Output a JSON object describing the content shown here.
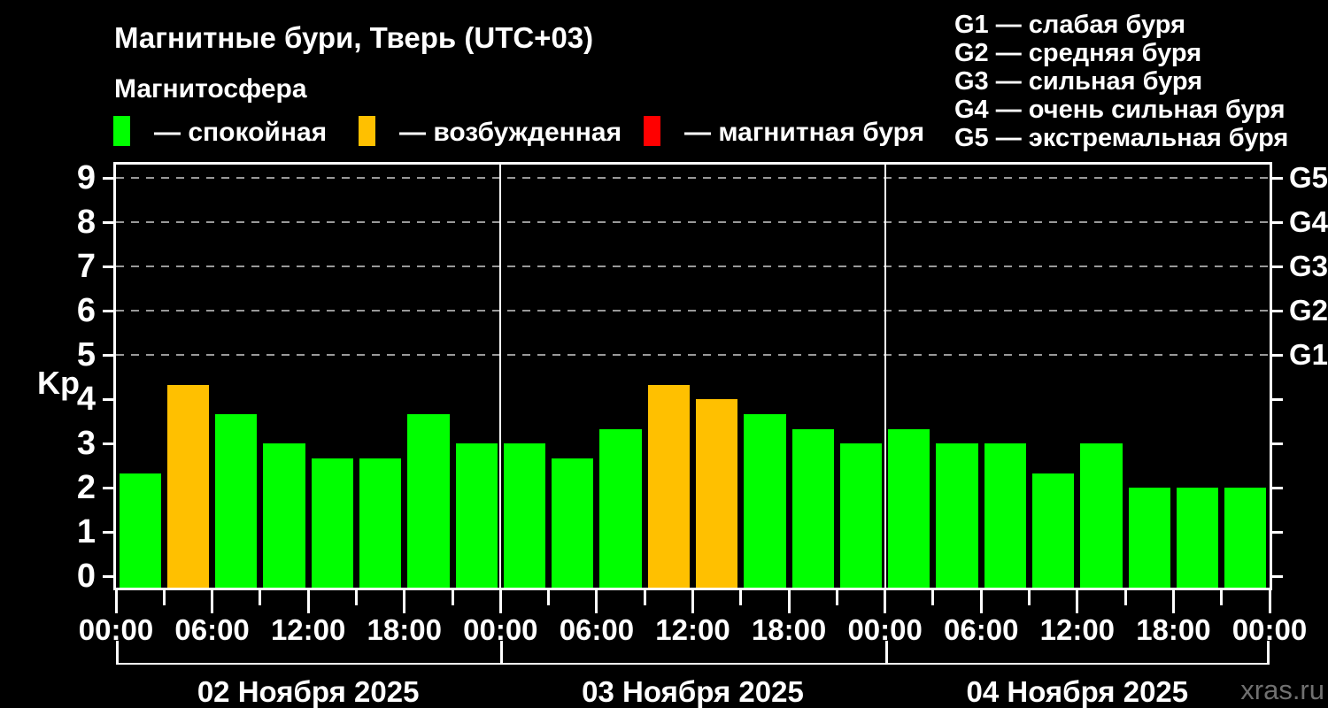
{
  "title": "Магнитные бури, Тверь (UTC+03)",
  "subtitle": "Магнитосфера",
  "watermark": "xras.ru",
  "colors": {
    "quiet": "#00ff00",
    "excited": "#ffc000",
    "storm": "#ff0000",
    "background": "#000000",
    "axis": "#ffffff",
    "grid": "#999999",
    "watermark": "#707070"
  },
  "magnetosphere_legend": [
    {
      "state": "quiet",
      "label": "— спокойная"
    },
    {
      "state": "excited",
      "label": "— возбужденная"
    },
    {
      "state": "storm",
      "label": "— магнитная буря"
    }
  ],
  "g_scale_legend": [
    {
      "code": "G1",
      "label": "слабая буря"
    },
    {
      "code": "G2",
      "label": "средняя буря"
    },
    {
      "code": "G3",
      "label": "сильная буря"
    },
    {
      "code": "G4",
      "label": "очень сильная буря"
    },
    {
      "code": "G5",
      "label": "экстремальная буря"
    }
  ],
  "chart_data": {
    "type": "bar",
    "title": "Магнитные бури, Тверь (UTC+03)",
    "ylabel": "Kp",
    "ylim": [
      0,
      9
    ],
    "yticks": [
      0,
      1,
      2,
      3,
      4,
      5,
      6,
      7,
      8,
      9
    ],
    "grid_levels": [
      5,
      6,
      7,
      8,
      9
    ],
    "grid": "dashed-on-storm-levels-only",
    "legend_position": "top",
    "right_axis": [
      {
        "level": 5,
        "label": "G1"
      },
      {
        "level": 6,
        "label": "G2"
      },
      {
        "level": 7,
        "label": "G3"
      },
      {
        "level": 8,
        "label": "G4"
      },
      {
        "level": 9,
        "label": "G5"
      }
    ],
    "hours_per_bar": 3,
    "x_time_labels": [
      "00:00",
      "06:00",
      "12:00",
      "18:00"
    ],
    "x_end_label": "00:00",
    "days": [
      {
        "date": "02 Ноября 2025",
        "values": [
          2.33,
          4.33,
          3.67,
          3.0,
          2.67,
          2.67,
          3.67,
          3.0
        ],
        "states": [
          "quiet",
          "excited",
          "quiet",
          "quiet",
          "quiet",
          "quiet",
          "quiet",
          "quiet"
        ]
      },
      {
        "date": "03 Ноября 2025",
        "values": [
          3.0,
          2.67,
          3.33,
          4.33,
          4.0,
          3.67,
          3.33,
          3.0
        ],
        "states": [
          "quiet",
          "quiet",
          "quiet",
          "excited",
          "excited",
          "quiet",
          "quiet",
          "quiet"
        ]
      },
      {
        "date": "04 Ноября 2025",
        "values": [
          3.33,
          3.0,
          3.0,
          2.33,
          3.0,
          2.0,
          2.0,
          2.0
        ],
        "states": [
          "quiet",
          "quiet",
          "quiet",
          "quiet",
          "quiet",
          "quiet",
          "quiet",
          "quiet"
        ]
      }
    ]
  }
}
